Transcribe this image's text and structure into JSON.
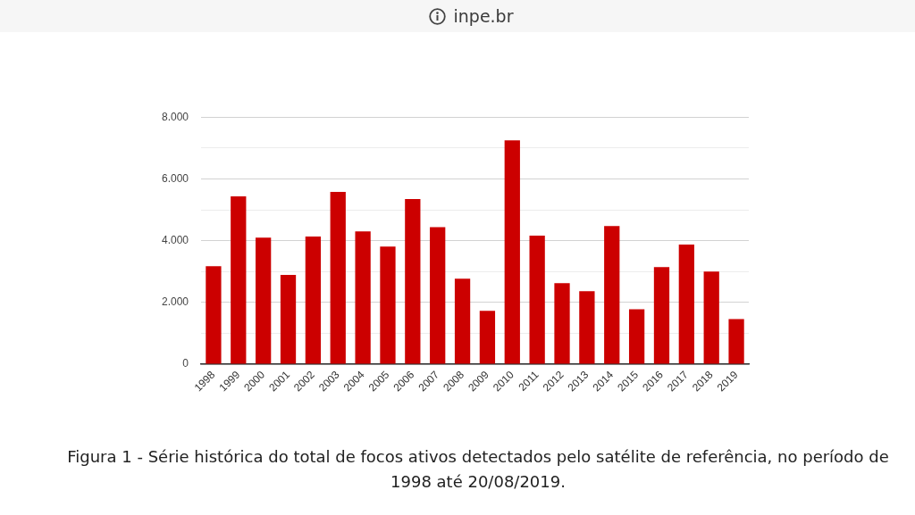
{
  "chart_data": {
    "type": "bar",
    "categories": [
      "1998",
      "1999",
      "2000",
      "2001",
      "2002",
      "2003",
      "2004",
      "2005",
      "2006",
      "2007",
      "2008",
      "2009",
      "2010",
      "2011",
      "2012",
      "2013",
      "2014",
      "2015",
      "2016",
      "2017",
      "2018",
      "2019"
    ],
    "values": [
      3170,
      5430,
      4100,
      2890,
      4130,
      5580,
      4300,
      3810,
      5350,
      4440,
      2770,
      1730,
      7250,
      4160,
      2620,
      2360,
      4470,
      1780,
      3140,
      3870,
      3000,
      1460
    ],
    "color": "#cc0000",
    "ylim": [
      0,
      8000
    ],
    "yticks": [
      0,
      {
        "value": 1000,
        "label": null
      },
      {
        "value": 2000,
        "label": "2.000"
      },
      {
        "value": 3000,
        "label": null
      },
      {
        "value": 4000,
        "label": "4.000"
      },
      {
        "value": 5000,
        "label": null
      },
      {
        "value": 6000,
        "label": "6.000"
      },
      {
        "value": 7000,
        "label": null
      },
      {
        "value": 8000,
        "label": "8.000"
      }
    ],
    "grid": "y",
    "annotations": [
      "inpe.br",
      "Figura 1 - Série histórica do total de focos ativos detectados pelo satélite de referência, no período de 1998 até 20/08/2019."
    ]
  }
}
